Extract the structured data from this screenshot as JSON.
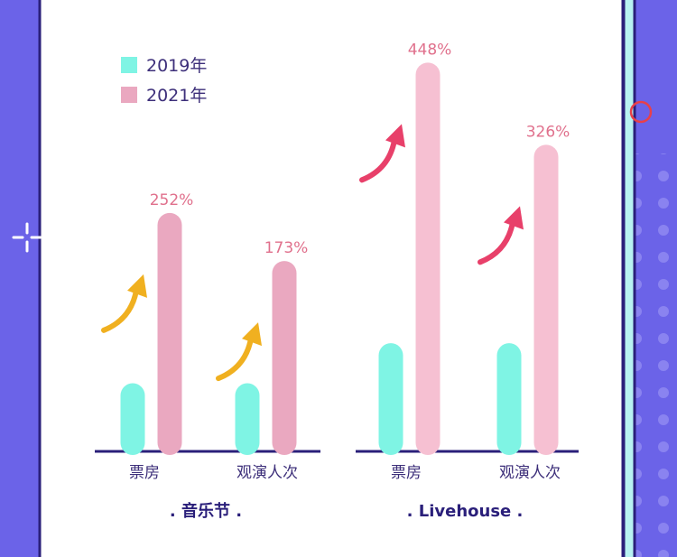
{
  "colors": {
    "background": "#6b63e8",
    "panel": "#ffffff",
    "border": "#2a1f7a",
    "series_2019": "#7ff4e4",
    "series_2021_festival": "#eaa8c0",
    "series_2021_livehouse": "#f6c0d2",
    "pct_text": "#e0708c",
    "arrow_festival": "#f0b020",
    "arrow_livehouse": "#e8406a",
    "accent_strip": "#b8f2f2"
  },
  "legend": [
    {
      "label": "2019年",
      "color": "#7ff4e4"
    },
    {
      "label": "2021年",
      "color": "#eaa8c0"
    }
  ],
  "chart_data": [
    {
      "type": "bar",
      "title": ". 音乐节 .",
      "categories": [
        "票房",
        "观演人次"
      ],
      "series": [
        {
          "name": "2019年",
          "relative_height": [
            0.34,
            0.34
          ]
        },
        {
          "name": "2021年",
          "relative_height": [
            1.19,
            0.95
          ],
          "growth_labels": [
            "252%",
            "173%"
          ]
        }
      ],
      "legend_placement": "top-left",
      "grid": false
    },
    {
      "type": "bar",
      "title": ". Livehouse .",
      "categories": [
        "票房",
        "观演人次"
      ],
      "series": [
        {
          "name": "2019年",
          "relative_height": [
            0.54,
            0.54
          ]
        },
        {
          "name": "2021年",
          "relative_height": [
            1.94,
            1.53
          ],
          "growth_labels": [
            "448%",
            "326%"
          ]
        }
      ],
      "grid": false
    }
  ],
  "icons": [
    "up-arrow-icon",
    "crosshair-icon",
    "ring-icon"
  ]
}
